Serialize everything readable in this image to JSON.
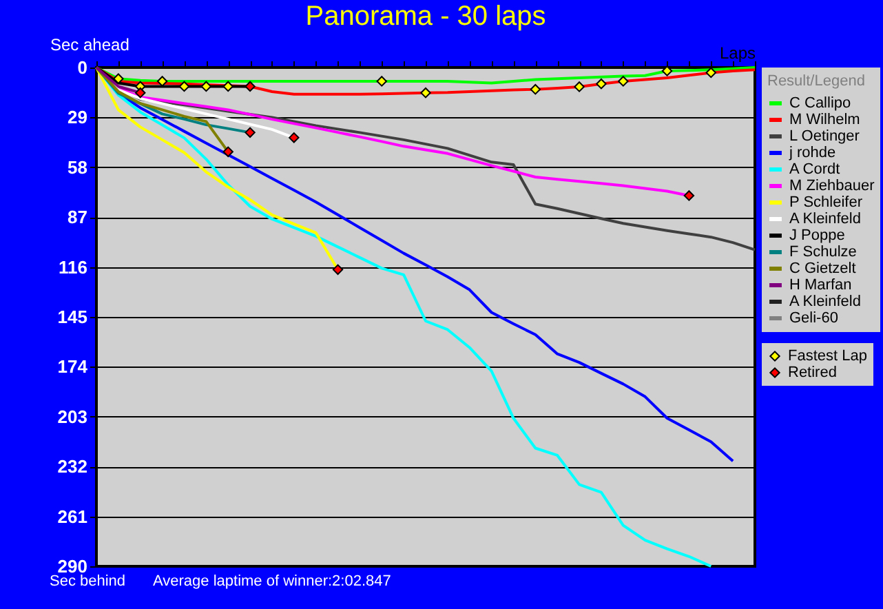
{
  "chart_data": {
    "type": "line",
    "title": "Panorama - 30 laps",
    "xlabel": "Laps",
    "ylabel": "Sec ahead",
    "legend_title": "Result/Legend",
    "annotations": [
      "Sec behind",
      "Average laptime of winner:2:02.847"
    ],
    "categories": [
      null,
      null,
      null,
      null,
      null,
      null,
      null,
      null,
      null,
      null,
      null,
      null,
      null,
      null,
      null,
      null,
      null,
      null,
      null,
      null,
      null,
      null,
      null,
      null,
      null,
      null,
      null,
      null,
      null,
      null,
      null
    ],
    "ylim": [
      290,
      0
    ],
    "yticks": [
      0,
      29,
      58,
      87,
      116,
      145,
      174,
      203,
      232,
      261,
      290
    ],
    "grid": "y",
    "legend": "right",
    "tick_labels": "y",
    "line_style": "solid",
    "series": [
      {
        "name": "C Callipo",
        "color": "#00ff00",
        "values": [
          0,
          6.5,
          7.5,
          8,
          8,
          8,
          8,
          8,
          8,
          8,
          8,
          8,
          8,
          8,
          8,
          8,
          8,
          8.5,
          9,
          8,
          7,
          6.5,
          6,
          5.5,
          5,
          4.7,
          2,
          1.7,
          1.3,
          0.7,
          0
        ]
      },
      {
        "name": "M Wilhelm",
        "color": "#ff0000",
        "values": [
          0,
          8,
          9,
          9.2,
          9.5,
          10,
          10.5,
          11,
          14,
          15.5,
          15.5,
          15.5,
          15.5,
          15.3,
          15,
          14.7,
          14.5,
          14,
          13.5,
          13,
          12.7,
          12,
          11.2,
          9.5,
          8,
          7,
          6,
          4.5,
          3,
          2,
          1.3
        ]
      },
      {
        "name": "L Oetinger",
        "color": "#404040",
        "values": [
          0,
          12,
          18.4,
          20,
          21.7,
          23.5,
          25.4,
          27.2,
          29,
          31.4,
          33.8,
          35.8,
          37.8,
          39.9,
          42,
          44.5,
          47,
          51,
          55,
          56.5,
          79.4,
          82,
          84.9,
          87.8,
          90.6,
          92.7,
          94.8,
          96.7,
          98.6,
          101.8,
          106
        ]
      },
      {
        "name": "j rohde",
        "color": "#0000ff",
        "values": [
          0,
          15,
          23.4,
          30.2,
          37.1,
          44,
          50.8,
          57.6,
          64.5,
          71.3,
          78.2,
          85.6,
          93.1,
          100.5,
          108,
          114.8,
          121.7,
          129.2,
          142.4,
          149,
          155.3,
          166.5,
          171.5,
          177.8,
          184,
          191.4,
          203.9,
          210.7,
          217.6,
          228.8,
          null
        ]
      },
      {
        "name": "A Cordt",
        "color": "#00ffff",
        "values": [
          0,
          16,
          25.9,
          33.4,
          40.9,
          53.3,
          68.2,
          80.7,
          88.1,
          93.1,
          98.1,
          104.3,
          110.5,
          116.7,
          120.5,
          147.4,
          152.4,
          162.8,
          176.5,
          203.9,
          221.3,
          225.5,
          242.5,
          247,
          266.2,
          274.8,
          279.8,
          284.3,
          290,
          null,
          null
        ]
      },
      {
        "name": "M Ziehbauer",
        "color": "#ff00ff",
        "values": [
          0,
          12,
          17.2,
          19,
          20.9,
          22.7,
          24.6,
          27.3,
          30.1,
          32.6,
          35.1,
          37.7,
          40.3,
          43,
          45.8,
          47.9,
          50,
          53.5,
          57,
          60.3,
          63.7,
          65,
          66.2,
          67.4,
          68.7,
          70.3,
          71.9,
          74.5,
          null,
          null,
          null
        ]
      },
      {
        "name": "P Schleifer",
        "color": "#ffff00",
        "values": [
          0,
          24.6,
          34.6,
          42,
          49.5,
          60.7,
          69.5,
          76.9,
          85.7,
          91,
          96.1,
          117.5,
          null,
          null,
          null,
          null,
          null,
          null,
          null,
          null,
          null,
          null,
          null,
          null,
          null,
          null,
          null,
          null,
          null,
          null,
          null
        ]
      },
      {
        "name": "A Kleinfeld",
        "color": "#ffffff",
        "values": [
          0,
          13,
          18,
          21,
          24,
          27,
          30,
          33,
          36,
          40.8,
          null,
          null,
          null,
          null,
          null,
          null,
          null,
          null,
          null,
          null,
          null,
          null,
          null,
          null,
          null,
          null,
          null,
          null,
          null,
          null,
          null
        ]
      },
      {
        "name": "J Poppe",
        "color": "#000000",
        "values": [
          0,
          9,
          11,
          11,
          11,
          11,
          11,
          11,
          null,
          null,
          null,
          null,
          null,
          null,
          null,
          null,
          null,
          null,
          null,
          null,
          null,
          null,
          null,
          null,
          null,
          null,
          null,
          null,
          null,
          null,
          null
        ]
      },
      {
        "name": "F Schulze",
        "color": "#008080",
        "values": [
          0,
          15,
          21,
          27,
          30,
          33.3,
          35.5,
          37.8,
          null,
          null,
          null,
          null,
          null,
          null,
          null,
          null,
          null,
          null,
          null,
          null,
          null,
          null,
          null,
          null,
          null,
          null,
          null,
          null,
          null,
          null,
          null
        ]
      },
      {
        "name": "C Gietzelt",
        "color": "#808000",
        "values": [
          0,
          14,
          20.9,
          24.6,
          28.4,
          31.4,
          49,
          null,
          null,
          null,
          null,
          null,
          null,
          null,
          null,
          null,
          null,
          null,
          null,
          null,
          null,
          null,
          null,
          null,
          null,
          null,
          null,
          null,
          null,
          null,
          null
        ]
      },
      {
        "name": "H Marfan",
        "color": "#800080",
        "values": [
          0,
          11,
          14.7,
          null,
          null,
          null,
          null,
          null,
          null,
          null,
          null,
          null,
          null,
          null,
          null,
          null,
          null,
          null,
          null,
          null,
          null,
          null,
          null,
          null,
          null,
          null,
          null,
          null,
          null,
          null,
          null
        ]
      },
      {
        "name": "A Kleinfeld",
        "color": "#202020",
        "values": [
          null,
          null,
          null,
          null,
          null,
          null,
          null,
          null,
          null,
          null,
          null,
          null,
          null,
          null,
          null,
          null,
          null,
          null,
          null,
          null,
          null,
          null,
          null,
          null,
          null,
          null,
          null,
          null,
          null,
          null,
          null
        ]
      },
      {
        "name": "Geli-60",
        "color": "#808080",
        "values": [
          null,
          null,
          null,
          null,
          null,
          null,
          null,
          null,
          null,
          null,
          null,
          null,
          null,
          null,
          null,
          null,
          null,
          null,
          null,
          null,
          null,
          null,
          null,
          null,
          null,
          null,
          null,
          null,
          null,
          null,
          null
        ]
      },
      {
        "name": "Fastest Lap",
        "type": "scatter",
        "marker": "diamond",
        "color": "#ffff00",
        "values": [
          null,
          6.5,
          11,
          8,
          11,
          11,
          11,
          null,
          null,
          null,
          null,
          null,
          null,
          8,
          null,
          14.7,
          null,
          null,
          null,
          null,
          12.7,
          null,
          11.2,
          9.5,
          8,
          null,
          2,
          null,
          3,
          null,
          null
        ]
      },
      {
        "name": "Retired",
        "type": "scatter",
        "marker": "diamond",
        "color": "#ff0000",
        "values": [
          null,
          null,
          14.7,
          null,
          null,
          null,
          49,
          37.8,
          null,
          40.8,
          null,
          117.5,
          null,
          null,
          null,
          null,
          null,
          null,
          null,
          null,
          null,
          null,
          null,
          null,
          null,
          null,
          null,
          74.5,
          null,
          null,
          null
        ]
      },
      {
        "type": "scatter",
        "marker": "diamond",
        "color": "#ff0000",
        "values": [
          null,
          null,
          null,
          null,
          null,
          null,
          null,
          11,
          null,
          null,
          null,
          null,
          null,
          null,
          null,
          null,
          null,
          null,
          null,
          null,
          null,
          null,
          null,
          null,
          null,
          null,
          null,
          null,
          null,
          null,
          null
        ]
      }
    ]
  }
}
